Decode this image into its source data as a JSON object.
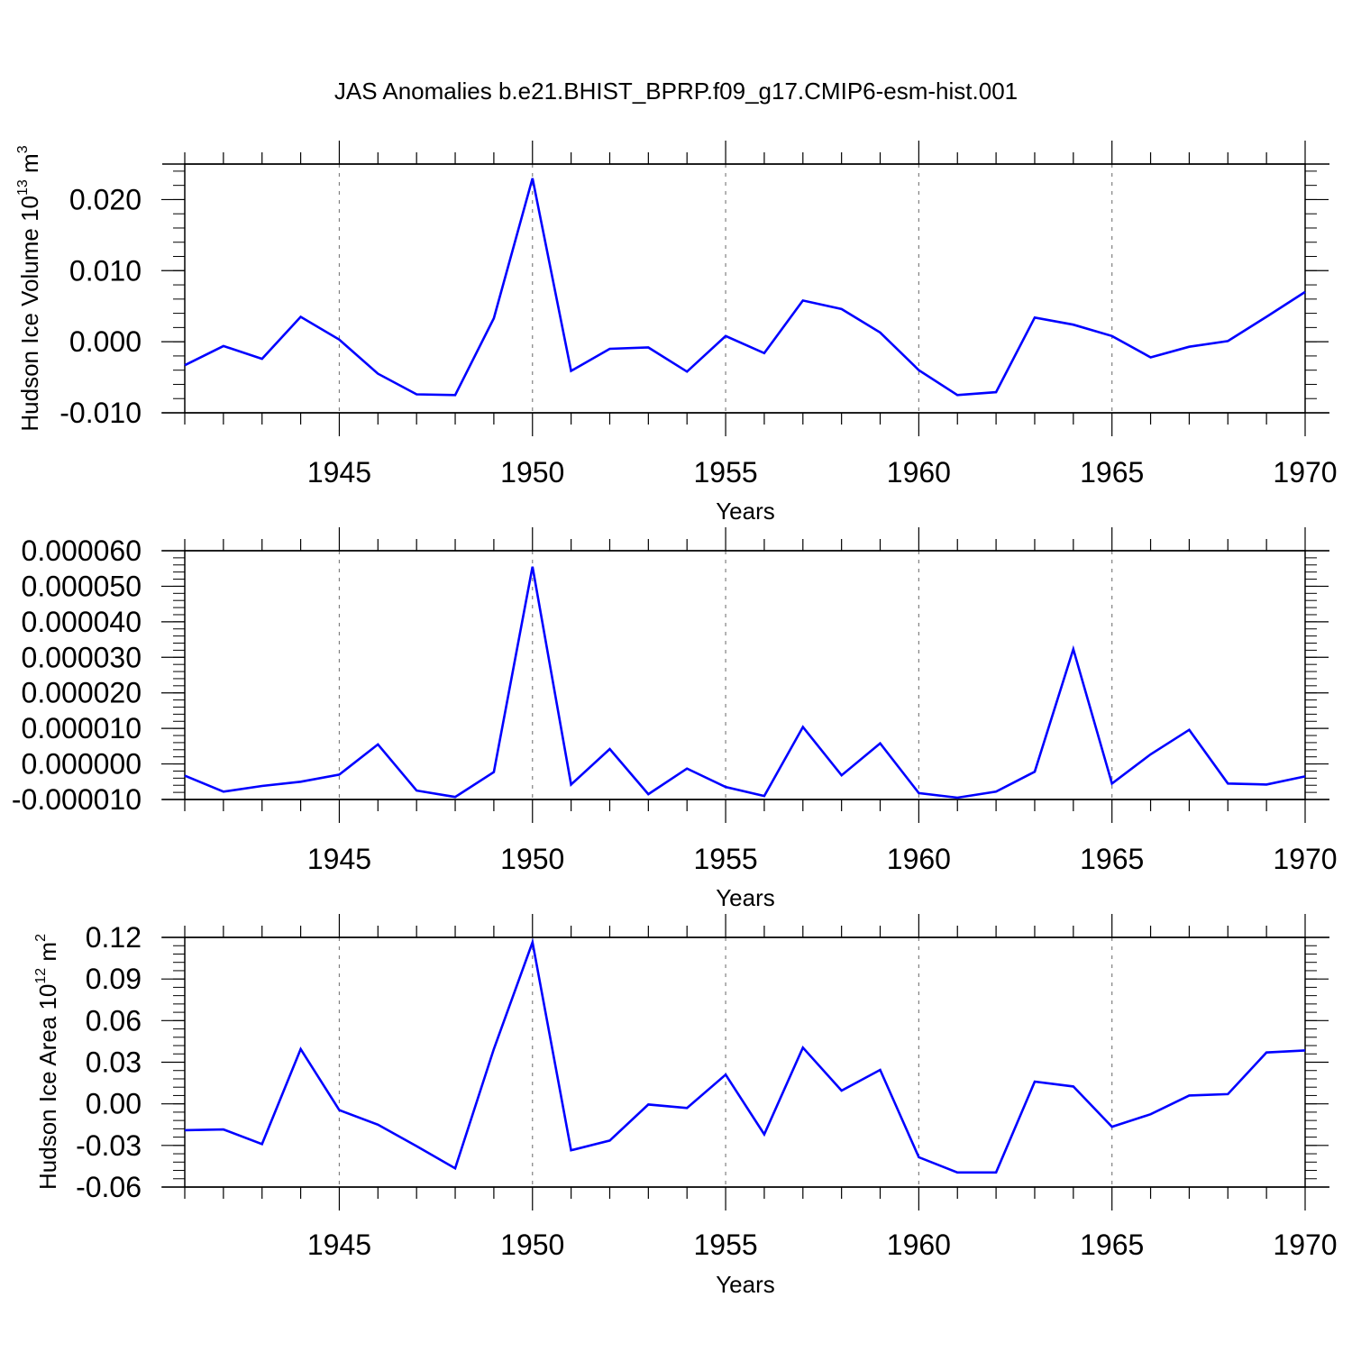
{
  "title": "JAS Anomalies b.e21.BHIST_BPRP.f09_g17.CMIP6-esm-hist.001",
  "colors": {
    "line": "#0000ff",
    "axis": "#000000",
    "grid": "#808080"
  },
  "chart_data": [
    {
      "type": "line",
      "title": "",
      "ylabel": {
        "main": "Hudson Ice Volume 10",
        "exp": "13",
        "unit": " m",
        "unit_exp": "3"
      },
      "xlabel": "Years",
      "xlim": [
        1941,
        1970
      ],
      "ylim": [
        -0.01,
        0.025
      ],
      "xticks": [
        1945,
        1950,
        1955,
        1960,
        1965,
        1970
      ],
      "yticks": [
        -0.01,
        0.0,
        0.01,
        0.02
      ],
      "yticklabels": [
        "-0.010",
        "0.000",
        "0.010",
        "0.020"
      ],
      "grid_x": [
        1945,
        1950,
        1955,
        1960,
        1965
      ],
      "x": [
        1941,
        1942,
        1943,
        1944,
        1945,
        1946,
        1947,
        1948,
        1949,
        1950,
        1951,
        1952,
        1953,
        1954,
        1955,
        1956,
        1957,
        1958,
        1959,
        1960,
        1961,
        1962,
        1963,
        1964,
        1965,
        1966,
        1967,
        1968,
        1969,
        1970
      ],
      "values": [
        -0.0033,
        -0.0006,
        -0.0024,
        0.0035,
        0.0003,
        -0.0045,
        -0.0074,
        -0.0075,
        0.0033,
        0.023,
        -0.0041,
        -0.001,
        -0.0008,
        -0.0042,
        0.0008,
        -0.0016,
        0.0058,
        0.0046,
        0.0013,
        -0.004,
        -0.0075,
        -0.0071,
        0.0034,
        0.0024,
        0.0008,
        -0.0022,
        -0.0007,
        0.0001,
        0.0035,
        0.007
      ]
    },
    {
      "type": "line",
      "title": "",
      "ylabel": {
        "main": "",
        "exp": "",
        "unit": "",
        "unit_exp": ""
      },
      "xlabel": "Years",
      "xlim": [
        1941,
        1970
      ],
      "ylim": [
        -1e-05,
        6e-05
      ],
      "xticks": [
        1945,
        1950,
        1955,
        1960,
        1965,
        1970
      ],
      "yticks": [
        -1e-05,
        0.0,
        1e-05,
        2e-05,
        3e-05,
        4e-05,
        5e-05,
        6e-05
      ],
      "yticklabels": [
        "-0.000010",
        "0.000000",
        "0.000010",
        "0.000020",
        "0.000030",
        "0.000040",
        "0.000050",
        "0.000060"
      ],
      "grid_x": [
        1945,
        1950,
        1955,
        1960,
        1965
      ],
      "x": [
        1941,
        1942,
        1943,
        1944,
        1945,
        1946,
        1947,
        1948,
        1949,
        1950,
        1951,
        1952,
        1953,
        1954,
        1955,
        1956,
        1957,
        1958,
        1959,
        1960,
        1961,
        1962,
        1963,
        1964,
        1965,
        1966,
        1967,
        1968,
        1969,
        1970
      ],
      "values": [
        -3.3e-06,
        -7.8e-06,
        -6.2e-06,
        -5e-06,
        -3e-06,
        5.5e-06,
        -7.5e-06,
        -9.3e-06,
        -2.3e-06,
        5.55e-05,
        -5.8e-06,
        4.2e-06,
        -8.5e-06,
        -1.3e-06,
        -6.5e-06,
        -9e-06,
        1.04e-05,
        -3.2e-06,
        5.8e-06,
        -8.2e-06,
        -9.5e-06,
        -7.8e-06,
        -2.2e-06,
        3.23e-05,
        -5.5e-06,
        2.7e-06,
        9.6e-06,
        -5.5e-06,
        -5.8e-06,
        -3.5e-06
      ]
    },
    {
      "type": "line",
      "title": "",
      "ylabel": {
        "main": "Hudson Ice Area 10",
        "exp": "12",
        "unit": " m",
        "unit_exp": "2"
      },
      "xlabel": "Years",
      "xlim": [
        1941,
        1970
      ],
      "ylim": [
        -0.06,
        0.12
      ],
      "xticks": [
        1945,
        1950,
        1955,
        1960,
        1965,
        1970
      ],
      "yticks": [
        -0.06,
        -0.03,
        0.0,
        0.03,
        0.06,
        0.09,
        0.12
      ],
      "yticklabels": [
        "-0.06",
        "-0.03",
        "0.00",
        "0.03",
        "0.06",
        "0.09",
        "0.12"
      ],
      "grid_x": [
        1945,
        1950,
        1955,
        1960,
        1965
      ],
      "x": [
        1941,
        1942,
        1943,
        1944,
        1945,
        1946,
        1947,
        1948,
        1949,
        1950,
        1951,
        1952,
        1953,
        1954,
        1955,
        1956,
        1957,
        1958,
        1959,
        1960,
        1961,
        1962,
        1963,
        1964,
        1965,
        1966,
        1967,
        1968,
        1969,
        1970
      ],
      "values": [
        -0.019,
        -0.0185,
        -0.029,
        0.0395,
        -0.0045,
        -0.015,
        -0.0305,
        -0.0465,
        0.0395,
        0.1165,
        -0.0335,
        -0.0265,
        -0.0005,
        -0.003,
        0.021,
        -0.022,
        0.0405,
        0.0095,
        0.0245,
        -0.0385,
        -0.0495,
        -0.0495,
        0.016,
        0.0125,
        -0.0165,
        -0.0075,
        0.006,
        0.007,
        0.037,
        0.0385
      ]
    }
  ]
}
